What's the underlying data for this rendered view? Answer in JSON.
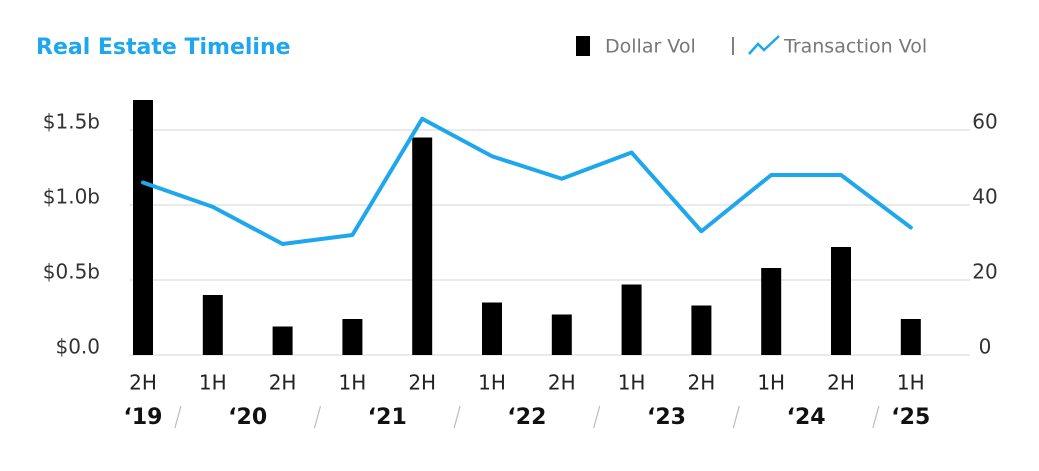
{
  "chart_data": {
    "type": "combo",
    "title": "Real Estate Timeline",
    "categories": [
      "2H",
      "1H",
      "2H",
      "1H",
      "2H",
      "1H",
      "2H",
      "1H",
      "2H",
      "1H",
      "2H",
      "1H"
    ],
    "years": [
      "‘19",
      "‘20",
      "‘21",
      "‘22",
      "‘23",
      "‘24",
      "‘25"
    ],
    "series": [
      {
        "name": "Dollar Vol",
        "type": "bar",
        "color": "#000000",
        "values": [
          1.7,
          0.4,
          0.19,
          0.24,
          1.45,
          0.35,
          0.27,
          0.47,
          0.33,
          0.58,
          0.72,
          0.24
        ]
      },
      {
        "name": "Transaction Vol",
        "type": "line",
        "axis": "y2",
        "color": "#1ea7ec",
        "values": [
          46,
          39.5,
          29.6,
          32,
          63,
          53,
          47,
          54,
          33,
          48,
          48,
          34
        ]
      }
    ],
    "ylim": [
      0,
      1.7
    ],
    "yticks": [
      {
        "value": 0,
        "label": "$0.0"
      },
      {
        "value": 0.5,
        "label": "$0.5b"
      },
      {
        "value": 1.0,
        "label": "$1.0b"
      },
      {
        "value": 1.5,
        "label": "$1.5b"
      }
    ],
    "y2lim": [
      0,
      68
    ],
    "y2ticks": [
      0,
      20,
      40,
      60
    ],
    "grid": true
  }
}
